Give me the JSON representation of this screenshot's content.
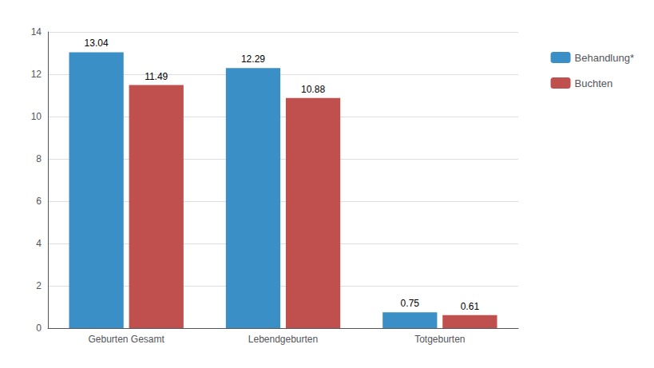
{
  "chart_data": {
    "type": "bar",
    "categories": [
      "Geburten Gesamt",
      "Lebendgeburten",
      "Totgeburten"
    ],
    "series": [
      {
        "name": "Behandlung*",
        "color": "#3B8FC7",
        "values": [
          13.04,
          12.29,
          0.75
        ]
      },
      {
        "name": "Buchten",
        "color": "#C0504D",
        "values": [
          11.49,
          10.88,
          0.61
        ]
      }
    ],
    "ylim": [
      0,
      14
    ],
    "yticks": [
      0,
      2,
      4,
      6,
      8,
      10,
      12,
      14
    ],
    "grid": true,
    "legend": "right",
    "data_labels": true
  }
}
